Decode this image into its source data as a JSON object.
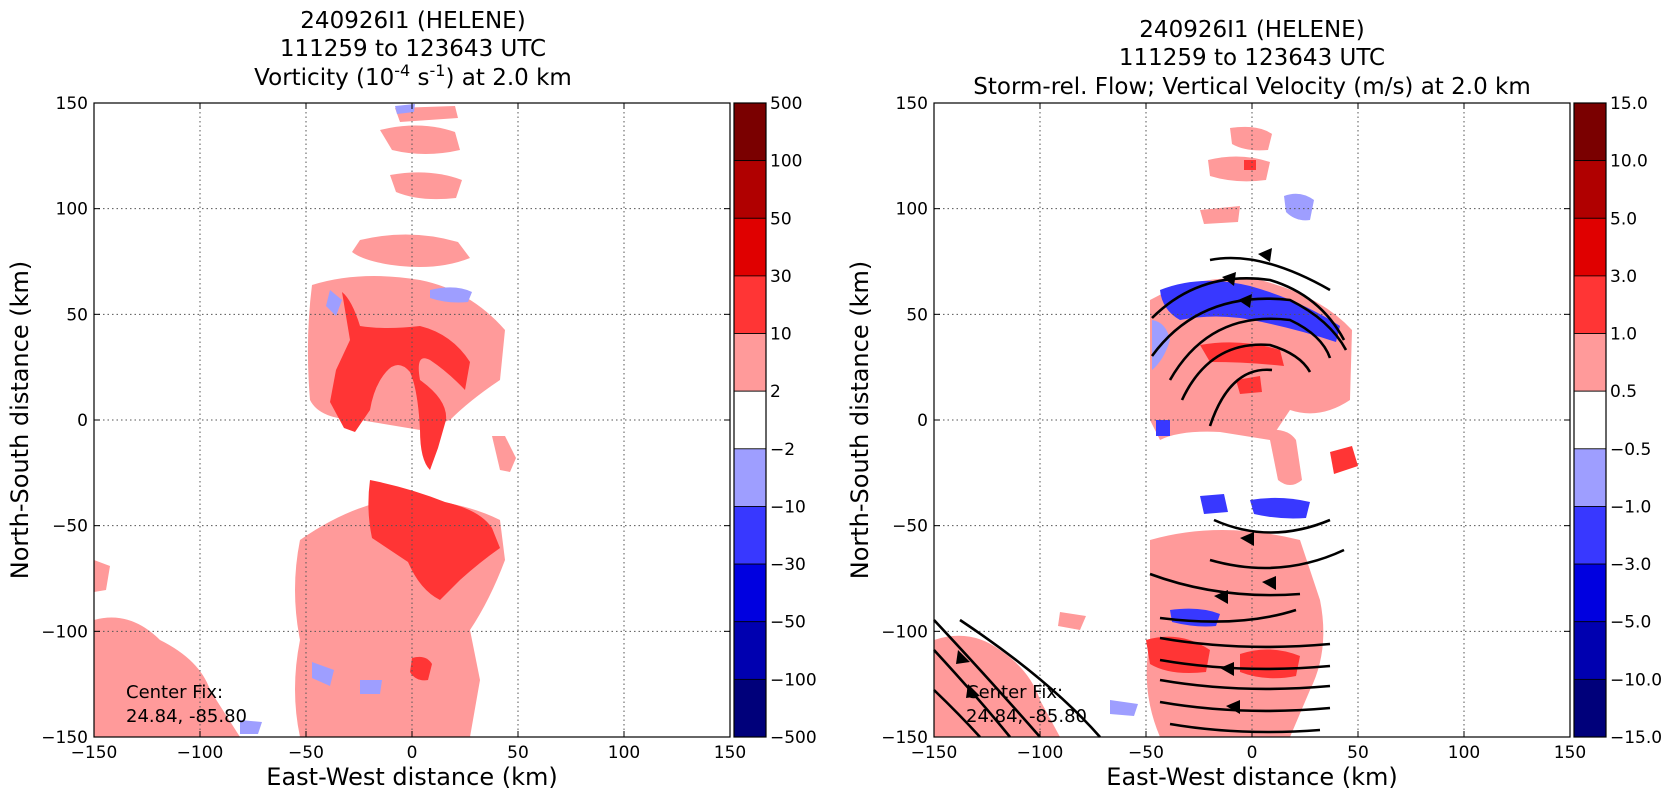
{
  "chart_data": [
    {
      "type": "heatmap",
      "title_lines": [
        "240926I1 (HELENE)",
        "111259 to 123643 UTC"
      ],
      "title_variable": {
        "prefix": "Vorticity (10",
        "exp1": "-4",
        "mid": " s",
        "exp2": "-1",
        "suffix": ") at 2.0 km"
      },
      "xlabel": "East-West distance (km)",
      "ylabel": "North-South distance (km)",
      "xlim": [
        -150,
        150
      ],
      "ylim": [
        -150,
        150
      ],
      "xticks": [
        "−150",
        "−100",
        "−50",
        "0",
        "50",
        "100",
        "150"
      ],
      "yticks": [
        "−150",
        "−100",
        "−50",
        "0",
        "50",
        "100",
        "150"
      ],
      "grid": true,
      "colorbar": {
        "labels": [
          "500",
          "100",
          "50",
          "30",
          "10",
          "2",
          "−2",
          "−10",
          "−30",
          "−50",
          "−100",
          "−500"
        ],
        "colors": [
          "#7a0000",
          "#b00000",
          "#e00000",
          "#ff3535",
          "#ff9a9a",
          "#ffffff",
          "#9e9eff",
          "#3838ff",
          "#0000e0",
          "#0000b0",
          "#00007a"
        ]
      },
      "center_fix": {
        "label": "Center Fix:",
        "value": "24.84, -85.80"
      }
    },
    {
      "type": "heatmap",
      "title_lines": [
        "240926I1 (HELENE)",
        "111259 to 123643 UTC",
        "Storm-rel. Flow; Vertical Velocity (m/s) at 2.0 km"
      ],
      "xlabel": "East-West distance (km)",
      "ylabel": "North-South distance (km)",
      "xlim": [
        -150,
        150
      ],
      "ylim": [
        -150,
        150
      ],
      "xticks": [
        "−150",
        "−100",
        "−50",
        "0",
        "50",
        "100",
        "150"
      ],
      "yticks": [
        "−150",
        "−100",
        "−50",
        "0",
        "50",
        "100",
        "150"
      ],
      "grid": true,
      "colorbar": {
        "labels": [
          "15.0",
          "10.0",
          "5.0",
          "3.0",
          "1.0",
          "0.5",
          "−0.5",
          "−1.0",
          "−3.0",
          "−5.0",
          "−10.0",
          "−15.0"
        ],
        "colors": [
          "#7a0000",
          "#b00000",
          "#e00000",
          "#ff3535",
          "#ff9a9a",
          "#ffffff",
          "#9e9eff",
          "#3838ff",
          "#0000e0",
          "#0000b0",
          "#00007a"
        ]
      },
      "center_fix": {
        "label": "Center Fix:",
        "value": "24.84, -85.80"
      }
    }
  ]
}
